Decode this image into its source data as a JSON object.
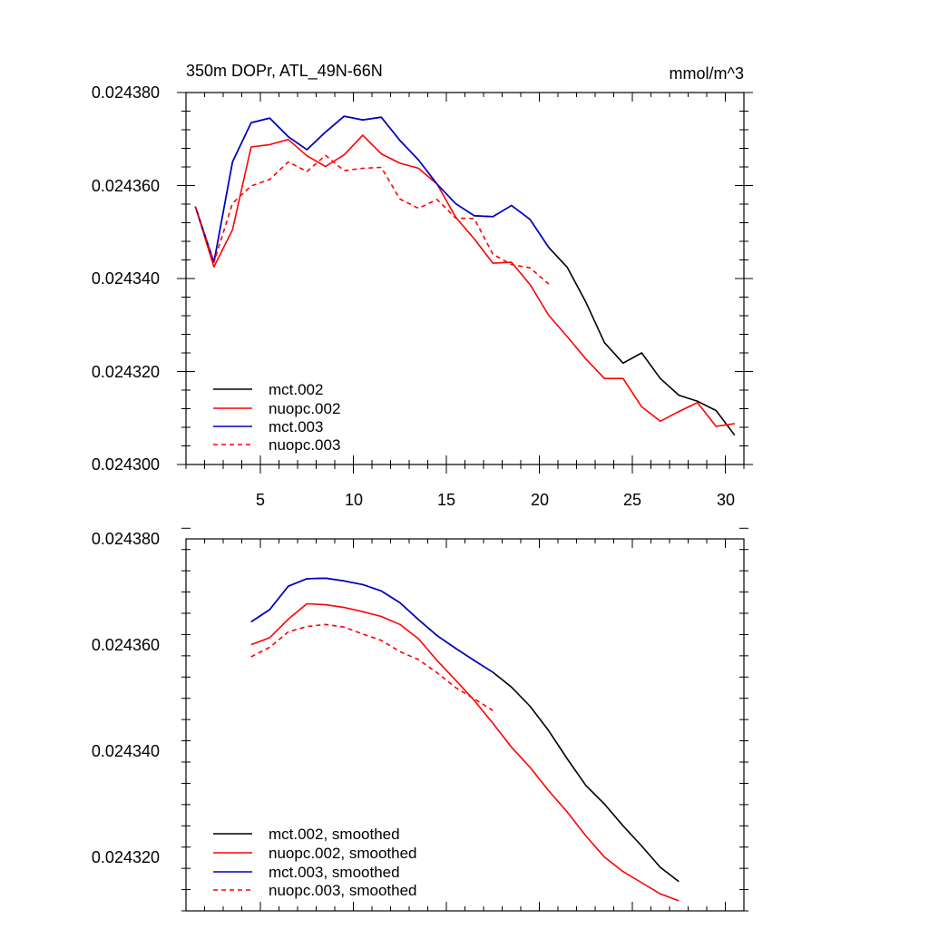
{
  "chart_data": [
    {
      "type": "line",
      "title": "350m DOPr, ATL_49N-66N",
      "units": "mmol/m^3",
      "xlim": [
        1,
        31
      ],
      "ylim": [
        0.0243,
        0.02438
      ],
      "xticks": [
        "5",
        "10",
        "15",
        "20",
        "25",
        "30"
      ],
      "yticks": [
        "0.024300",
        "0.024320",
        "0.024340",
        "0.024360",
        "0.024380"
      ],
      "legend_position": "bottom-left",
      "series": [
        {
          "name": "mct.002",
          "color": "#000000",
          "dash": "",
          "x": [
            1.5,
            2.5,
            3.5,
            4.5,
            5.5,
            6.5,
            7.5,
            8.5,
            9.5,
            10.5,
            11.5,
            12.5,
            13.5,
            14.5,
            15.5,
            16.5,
            17.5,
            18.5,
            19.5,
            20.5,
            21.5,
            22.5,
            23.5,
            24.5,
            25.5,
            26.5,
            27.5,
            28.5,
            29.5,
            30.5
          ],
          "y": [
            0.0243555,
            0.0243435,
            0.0243651,
            0.0243735,
            0.0243745,
            0.0243705,
            0.0243677,
            0.0243715,
            0.0243749,
            0.0243741,
            0.0243747,
            0.0243697,
            0.0243655,
            0.0243603,
            0.0243561,
            0.0243535,
            0.0243533,
            0.0243557,
            0.0243527,
            0.0243467,
            0.0243424,
            0.0243349,
            0.0243262,
            0.0243218,
            0.024324,
            0.0243185,
            0.0243149,
            0.0243136,
            0.0243116,
            0.0243063
          ]
        },
        {
          "name": "nuopc.002",
          "color": "#ff0000",
          "dash": "",
          "x": [
            1.5,
            2.5,
            3.5,
            4.5,
            5.5,
            6.5,
            7.5,
            8.5,
            9.5,
            10.5,
            11.5,
            12.5,
            13.5,
            14.5,
            15.5,
            16.5,
            17.5,
            18.5,
            19.5,
            20.5,
            21.5,
            22.5,
            23.5,
            24.5,
            25.5,
            26.5,
            27.5,
            28.5,
            29.5,
            30.5
          ],
          "y": [
            0.0243555,
            0.0243425,
            0.0243505,
            0.0243683,
            0.0243688,
            0.0243699,
            0.0243664,
            0.0243641,
            0.0243666,
            0.0243708,
            0.0243668,
            0.0243648,
            0.0243637,
            0.0243603,
            0.0243532,
            0.0243485,
            0.0243433,
            0.0243435,
            0.0243387,
            0.0243321,
            0.0243275,
            0.0243227,
            0.0243185,
            0.0243185,
            0.0243124,
            0.0243093,
            0.0243114,
            0.0243133,
            0.0243082,
            0.0243088
          ]
        },
        {
          "name": "mct.003",
          "color": "#0000cc",
          "dash": "",
          "x": [
            1.5,
            2.5,
            3.5,
            4.5,
            5.5,
            6.5,
            7.5,
            8.5,
            9.5,
            10.5,
            11.5,
            12.5,
            13.5,
            14.5,
            15.5,
            16.5,
            17.5,
            18.5,
            19.5,
            20.5
          ],
          "y": [
            0.0243555,
            0.0243435,
            0.0243651,
            0.0243735,
            0.0243745,
            0.0243705,
            0.0243677,
            0.0243715,
            0.0243749,
            0.0243741,
            0.0243747,
            0.0243697,
            0.0243655,
            0.0243603,
            0.0243561,
            0.0243535,
            0.0243533,
            0.0243557,
            0.0243527,
            0.0243467
          ]
        },
        {
          "name": "nuopc.003",
          "color": "#ff0000",
          "dash": "5,4",
          "x": [
            1.5,
            2.5,
            3.5,
            4.5,
            5.5,
            6.5,
            7.5,
            8.5,
            9.5,
            10.5,
            11.5,
            12.5,
            13.5,
            14.5,
            15.5,
            16.5,
            17.5,
            18.5,
            19.5,
            20.5
          ],
          "y": [
            0.0243555,
            0.0243435,
            0.0243562,
            0.0243599,
            0.0243613,
            0.0243651,
            0.024363,
            0.0243665,
            0.0243632,
            0.0243637,
            0.0243639,
            0.0243571,
            0.0243551,
            0.024357,
            0.024353,
            0.0243529,
            0.0243452,
            0.024343,
            0.0243423,
            0.0243388
          ]
        }
      ]
    },
    {
      "type": "line",
      "title": "",
      "units": "",
      "xlim": [
        1,
        31
      ],
      "ylim": [
        0.02431,
        0.02438
      ],
      "xticks": [],
      "yticks": [
        "0.024320",
        "0.024340",
        "0.024360",
        "0.024380"
      ],
      "legend_position": "bottom-left",
      "series": [
        {
          "name": "mct.002, smoothed",
          "color": "#000000",
          "dash": "",
          "x": [
            4.5,
            5.5,
            6.5,
            7.5,
            8.5,
            9.5,
            10.5,
            11.5,
            12.5,
            13.5,
            14.5,
            15.5,
            16.5,
            17.5,
            18.5,
            19.5,
            20.5,
            21.5,
            22.5,
            23.5,
            24.5,
            25.5,
            26.5,
            27.5
          ],
          "y": [
            0.0243644,
            0.0243667,
            0.0243711,
            0.0243725,
            0.0243726,
            0.0243721,
            0.0243714,
            0.0243702,
            0.024368,
            0.0243648,
            0.0243618,
            0.0243594,
            0.0243571,
            0.0243549,
            0.0243521,
            0.0243485,
            0.0243439,
            0.0243386,
            0.0243336,
            0.0243301,
            0.024326,
            0.0243222,
            0.0243182,
            0.0243155
          ]
        },
        {
          "name": "nuopc.002, smoothed",
          "color": "#ff0000",
          "dash": "",
          "x": [
            4.5,
            5.5,
            6.5,
            7.5,
            8.5,
            9.5,
            10.5,
            11.5,
            12.5,
            13.5,
            14.5,
            15.5,
            16.5,
            17.5,
            18.5,
            19.5,
            20.5,
            21.5,
            22.5,
            23.5,
            24.5,
            25.5,
            26.5,
            27.5
          ],
          "y": [
            0.0243601,
            0.0243614,
            0.0243649,
            0.0243678,
            0.0243676,
            0.0243671,
            0.0243663,
            0.0243654,
            0.0243639,
            0.0243612,
            0.0243571,
            0.0243534,
            0.0243496,
            0.0243453,
            0.0243408,
            0.024337,
            0.0243326,
            0.0243286,
            0.0243241,
            0.0243201,
            0.0243174,
            0.0243153,
            0.0243132,
            0.0243119
          ]
        },
        {
          "name": "mct.003, smoothed",
          "color": "#0000cc",
          "dash": "",
          "x": [
            4.5,
            5.5,
            6.5,
            7.5,
            8.5,
            9.5,
            10.5,
            11.5,
            12.5,
            13.5,
            14.5,
            15.5,
            16.5,
            17.5
          ],
          "y": [
            0.0243644,
            0.0243667,
            0.0243711,
            0.0243725,
            0.0243726,
            0.0243721,
            0.0243714,
            0.0243702,
            0.024368,
            0.0243648,
            0.0243618,
            0.0243594,
            0.0243571,
            0.0243549
          ]
        },
        {
          "name": "nuopc.003, smoothed",
          "color": "#ff0000",
          "dash": "5,4",
          "x": [
            4.5,
            5.5,
            6.5,
            7.5,
            8.5,
            9.5,
            10.5,
            11.5,
            12.5,
            13.5,
            14.5,
            15.5,
            16.5,
            17.5
          ],
          "y": [
            0.0243578,
            0.0243596,
            0.0243625,
            0.0243635,
            0.0243639,
            0.0243634,
            0.0243621,
            0.0243609,
            0.0243588,
            0.0243573,
            0.0243548,
            0.024352,
            0.0243499,
            0.0243477
          ]
        }
      ]
    }
  ]
}
